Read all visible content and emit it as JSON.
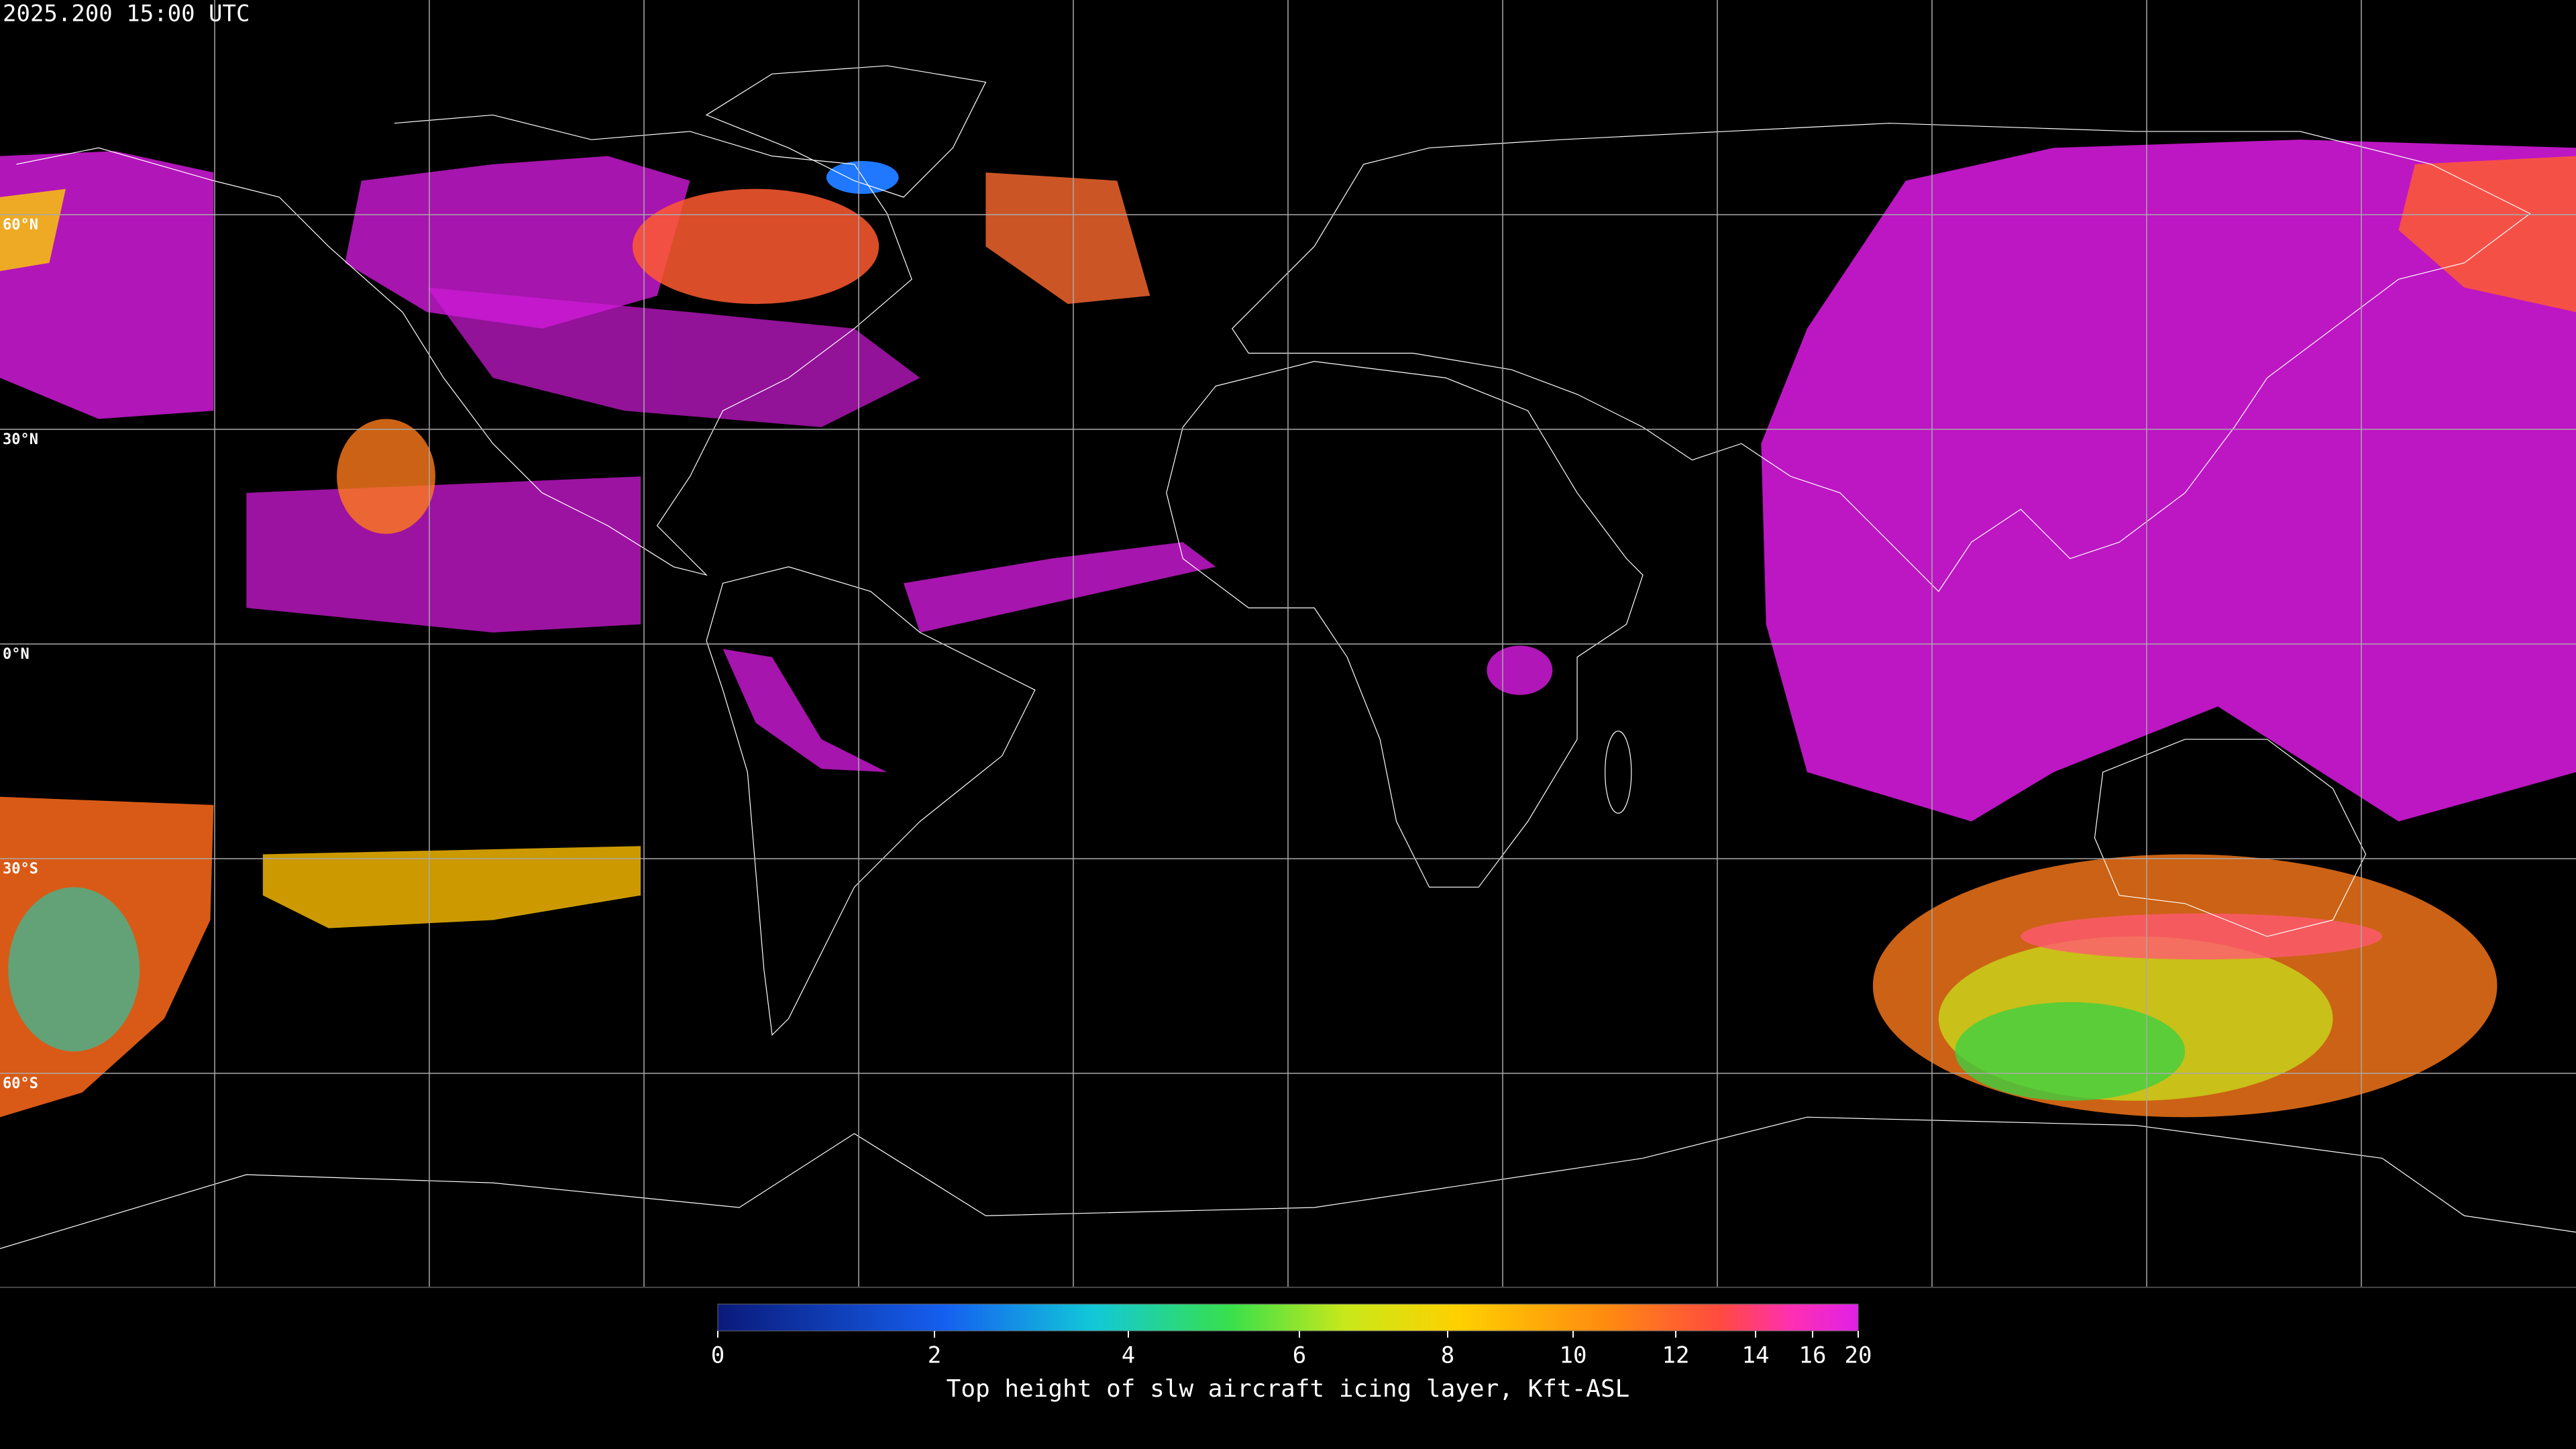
{
  "timestamp": "2025.200 15:00 UTC",
  "map": {
    "latitude_lines": [
      {
        "value": 60,
        "label": "60°N"
      },
      {
        "value": 30,
        "label": "30°N"
      },
      {
        "value": 0,
        "label": "0°N"
      },
      {
        "value": -30,
        "label": "30°S"
      },
      {
        "value": -60,
        "label": "60°S"
      }
    ]
  },
  "colorbar": {
    "title": "Top height of slw aircraft icing layer, Kft-ASL",
    "range": [
      0,
      20
    ],
    "ticks": [
      0,
      2,
      4,
      6,
      8,
      10,
      12,
      14,
      16,
      20
    ]
  }
}
